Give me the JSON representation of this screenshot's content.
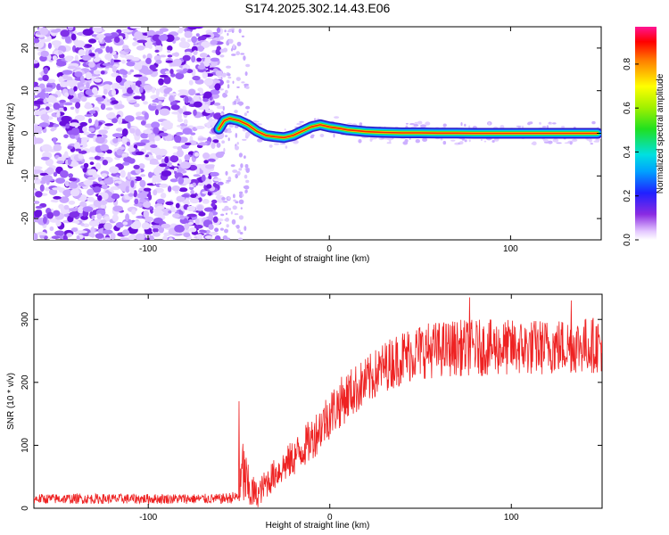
{
  "title": "S174.2025.302.14.43.E06",
  "chart_data": [
    {
      "type": "heatmap",
      "title": "S174.2025.302.14.43.E06",
      "xlabel": "Height of straight line (km)",
      "ylabel": "Frequency (Hz)",
      "xlim": [
        -163,
        150
      ],
      "ylim": [
        -25,
        25
      ],
      "xticks": [
        -100,
        0,
        100
      ],
      "yticks": [
        -20,
        -10,
        0,
        10,
        20
      ],
      "noise_region_x": [
        -163,
        -60
      ],
      "scatter_region_x": [
        -60,
        -45
      ],
      "signal_track": {
        "x": [
          -61,
          -58,
          -55,
          -50,
          -45,
          -40,
          -35,
          -30,
          -25,
          -20,
          -15,
          -10,
          -5,
          0,
          5,
          10,
          15,
          20,
          25,
          30,
          40,
          50,
          60,
          70,
          80,
          90,
          100,
          110,
          120,
          130,
          140,
          148
        ],
        "freq": [
          1,
          3,
          3.5,
          3,
          2,
          0.5,
          -0.5,
          -0.8,
          -1,
          -0.5,
          0.5,
          1.5,
          2,
          1.5,
          1.2,
          0.8,
          0.6,
          0.4,
          0.3,
          0.2,
          0.1,
          0.1,
          0.05,
          0.05,
          0,
          0,
          0,
          0,
          0,
          0,
          0,
          0
        ]
      },
      "colorbar": {
        "label": "Normalized spectral amplitude",
        "range": [
          0,
          1
        ],
        "ticks": [
          "0.0",
          "0.2",
          "0.4",
          "0.6",
          "0.8"
        ],
        "tick_values": [
          0,
          0.2,
          0.4,
          0.6,
          0.8
        ],
        "top_value": 0.97
      }
    },
    {
      "type": "line",
      "xlabel": "Height of straight line (km)",
      "ylabel": "SNR (10 * v/v)",
      "xlim": [
        -163,
        150
      ],
      "ylim": [
        0,
        340
      ],
      "xticks": [
        -100,
        0,
        100
      ],
      "yticks": [
        0,
        100,
        200,
        300
      ],
      "color": "#ee2222",
      "trend": {
        "x": [
          -163,
          -60,
          -50,
          -48,
          -45,
          -40,
          -35,
          -30,
          -20,
          -10,
          0,
          10,
          20,
          30,
          40,
          50,
          70,
          90,
          110,
          130,
          150
        ],
        "mean": [
          15,
          15,
          18,
          60,
          30,
          20,
          40,
          55,
          80,
          110,
          150,
          180,
          200,
          225,
          240,
          250,
          255,
          255,
          255,
          258,
          260
        ],
        "spread": [
          8,
          8,
          10,
          60,
          40,
          20,
          25,
          25,
          30,
          35,
          40,
          40,
          40,
          40,
          45,
          45,
          45,
          45,
          45,
          45,
          45
        ]
      },
      "annotated_peaks": [
        {
          "x": -50,
          "y": 170
        },
        {
          "x": 77,
          "y": 335
        },
        {
          "x": 133,
          "y": 330
        }
      ]
    }
  ]
}
